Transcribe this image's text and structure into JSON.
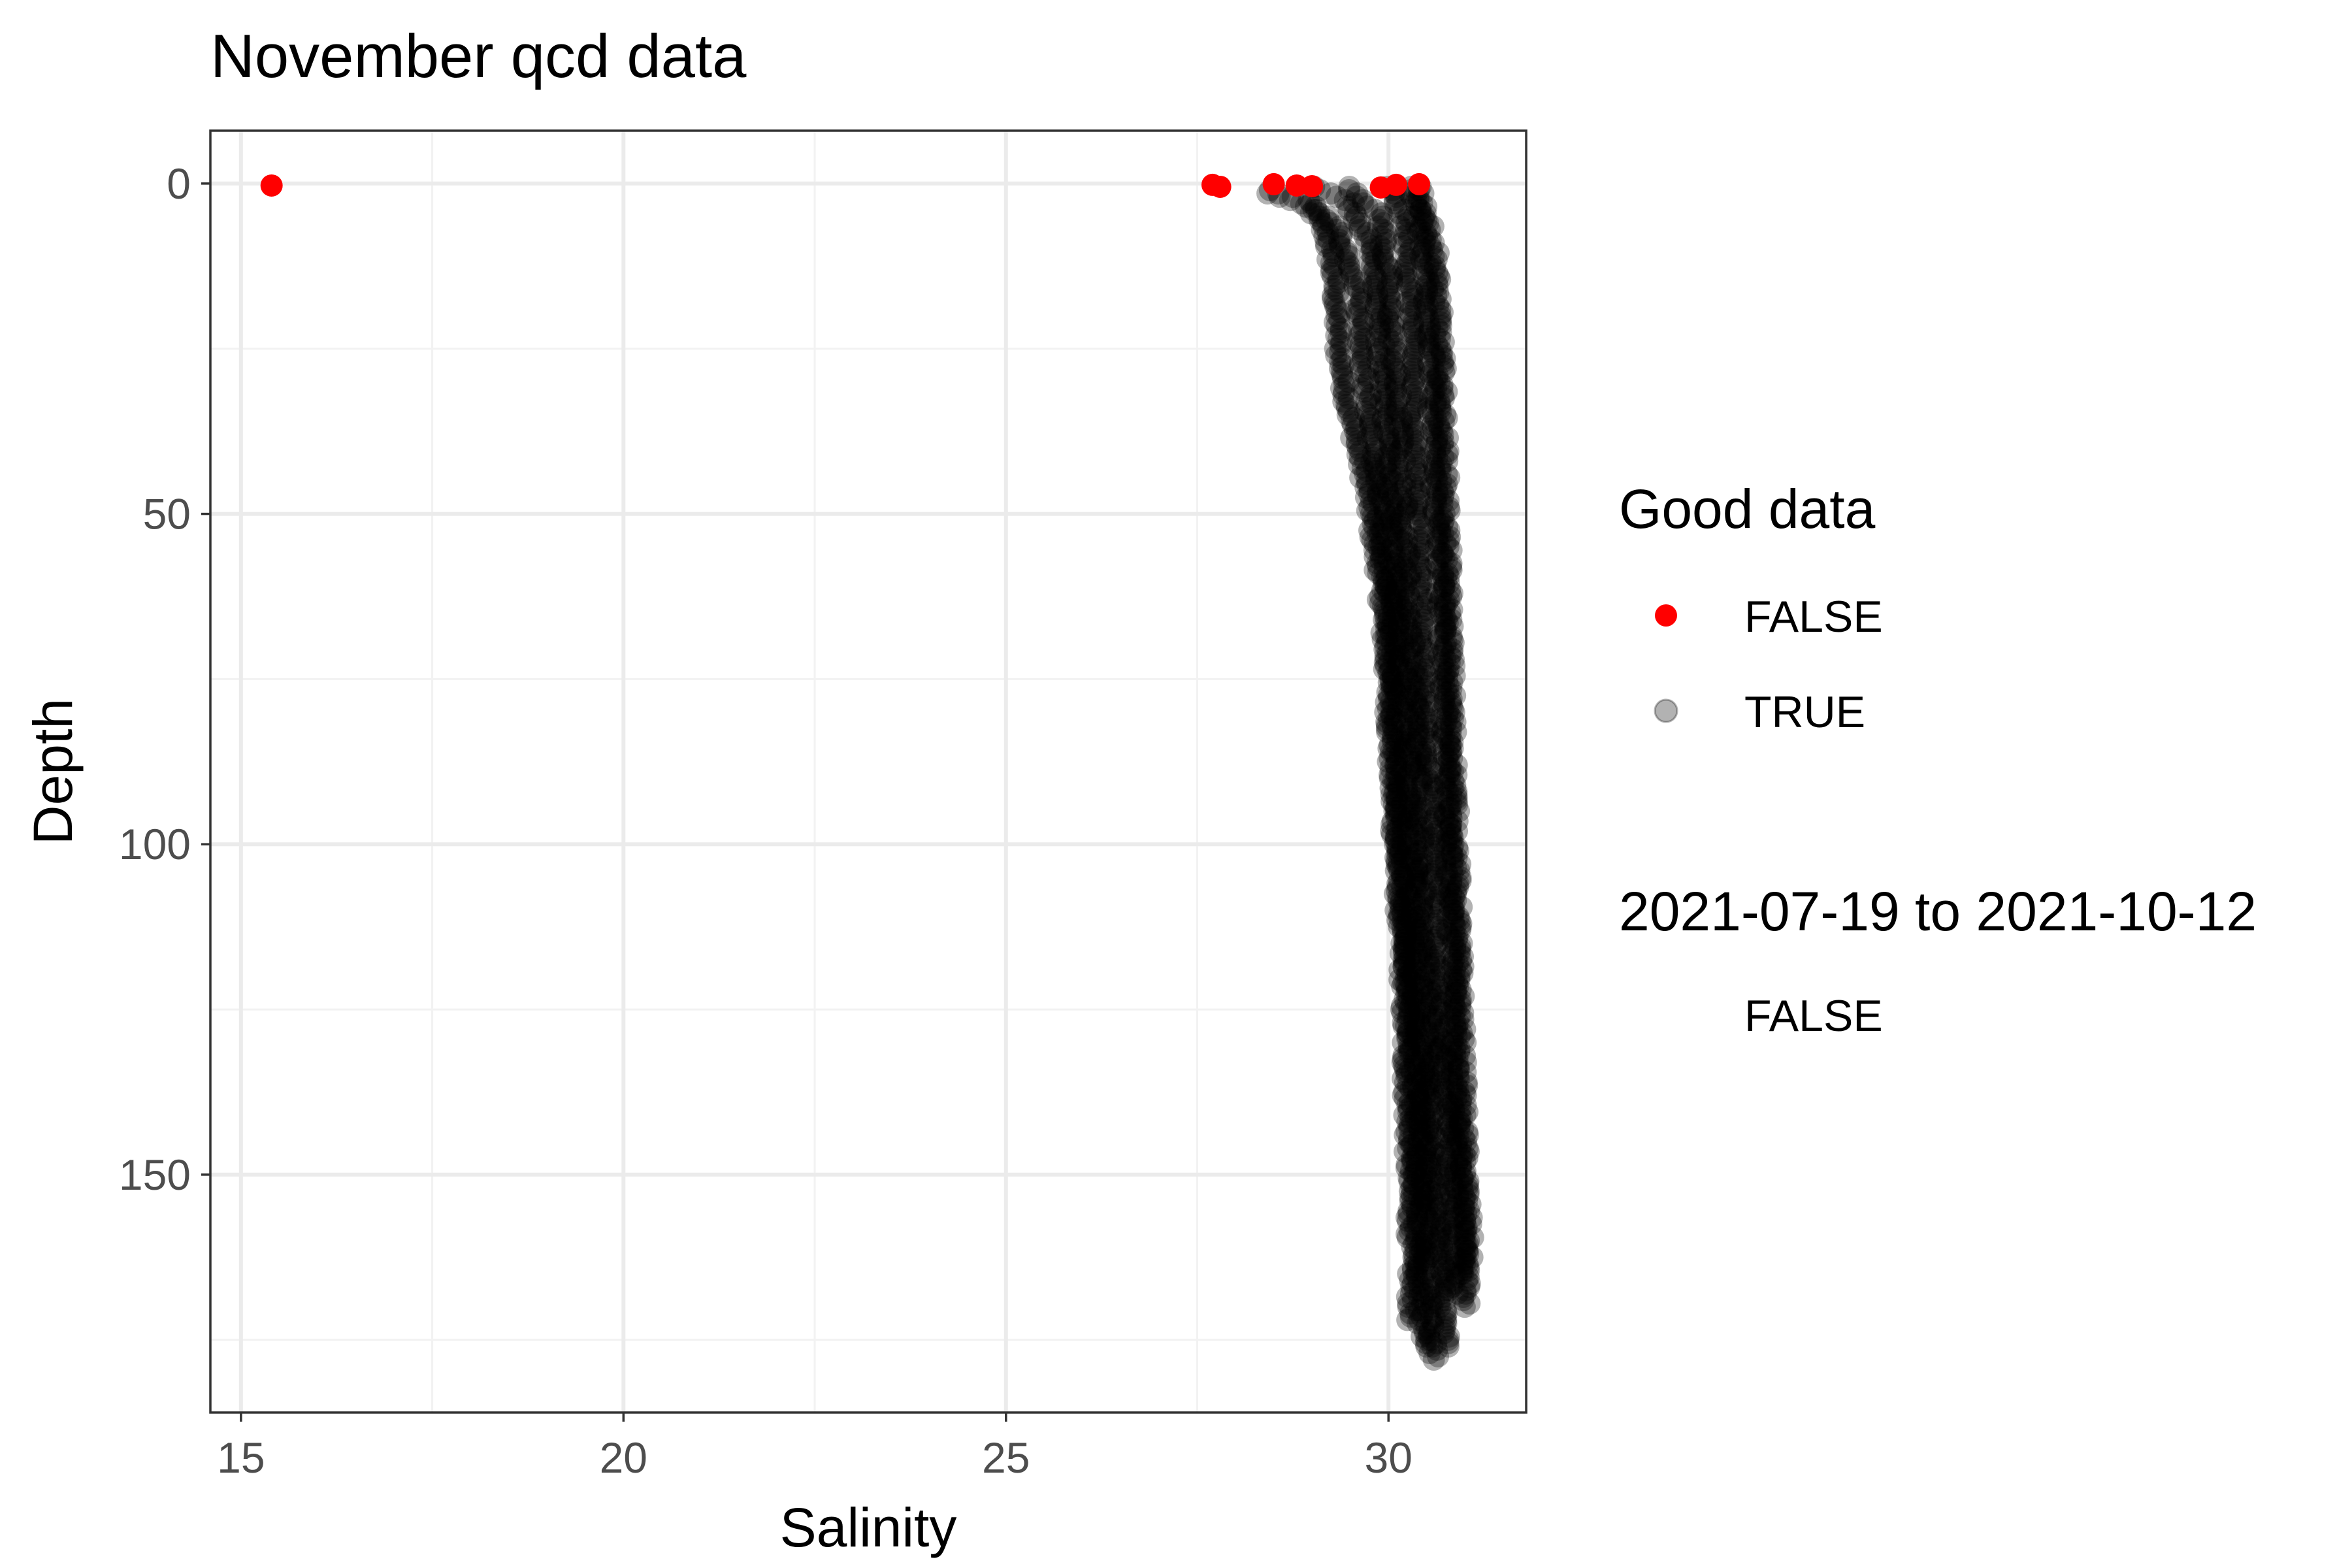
{
  "chart_data": {
    "type": "scatter",
    "title": "November qcd data",
    "xlabel": "Salinity",
    "ylabel": "Depth",
    "xlim": [
      14.6,
      31.8
    ],
    "ylim": [
      -8,
      186
    ],
    "y_reversed": true,
    "x_ticks": [
      15,
      20,
      25,
      30
    ],
    "y_ticks": [
      0,
      50,
      100,
      150
    ],
    "x_tick_labels": [
      "15",
      "20",
      "25",
      "30"
    ],
    "y_tick_labels": [
      "0",
      "50",
      "100",
      "150"
    ],
    "grid": true,
    "legend_placement": "right",
    "legends": [
      {
        "title": "Good data",
        "entries": [
          {
            "label": "FALSE",
            "color": "#ff0000",
            "alpha": 1.0
          },
          {
            "label": "TRUE",
            "color": "#000000",
            "alpha": 0.3
          }
        ]
      },
      {
        "title": "2021-07-19 to 2021-10-12",
        "entries": [
          {
            "label": "FALSE"
          }
        ]
      }
    ],
    "series": [
      {
        "good": "FALSE",
        "color": "#ff0000",
        "alpha": 1.0,
        "points": [
          {
            "x": 15.4,
            "y": 0.3
          },
          {
            "x": 27.7,
            "y": 0.2
          },
          {
            "x": 27.8,
            "y": 0.5
          },
          {
            "x": 28.5,
            "y": 0.1
          },
          {
            "x": 28.8,
            "y": 0.3
          },
          {
            "x": 29.0,
            "y": 0.4
          },
          {
            "x": 29.9,
            "y": 0.6
          },
          {
            "x": 30.1,
            "y": 0.2
          },
          {
            "x": 30.4,
            "y": 0.1
          }
        ]
      },
      {
        "good": "TRUE",
        "color": "#000000",
        "alpha": 0.3,
        "profiles": [
          [
            [
              27.9,
              1.5
            ],
            [
              28.2,
              1.0
            ],
            [
              28.6,
              2.0
            ],
            [
              29.0,
              4.0
            ],
            [
              29.2,
              8
            ],
            [
              29.3,
              15
            ],
            [
              29.35,
              25
            ],
            [
              29.5,
              35
            ],
            [
              29.7,
              45
            ],
            [
              29.9,
              60
            ],
            [
              30.0,
              75
            ],
            [
              30.05,
              90
            ],
            [
              30.1,
              100
            ],
            [
              30.2,
              120
            ],
            [
              30.25,
              140
            ],
            [
              30.3,
              160
            ],
            [
              30.3,
              172
            ]
          ],
          [
            [
              28.4,
              1.0
            ],
            [
              28.9,
              2.5
            ],
            [
              29.3,
              6
            ],
            [
              29.6,
              15
            ],
            [
              29.7,
              30
            ],
            [
              29.85,
              45
            ],
            [
              30.0,
              60
            ],
            [
              30.1,
              80
            ],
            [
              30.15,
              100
            ],
            [
              30.25,
              120
            ],
            [
              30.35,
              140
            ],
            [
              30.4,
              160
            ],
            [
              30.45,
              176
            ]
          ],
          [
            [
              29.0,
              0.5
            ],
            [
              29.5,
              3
            ],
            [
              29.8,
              10
            ],
            [
              29.9,
              25
            ],
            [
              30.0,
              40
            ],
            [
              30.1,
              55
            ],
            [
              30.2,
              75
            ],
            [
              30.3,
              95
            ],
            [
              30.35,
              115
            ],
            [
              30.45,
              135
            ],
            [
              30.5,
              155
            ],
            [
              30.55,
              170
            ],
            [
              30.6,
              178
            ]
          ],
          [
            [
              29.5,
              0.5
            ],
            [
              29.9,
              5
            ],
            [
              30.0,
              15
            ],
            [
              30.1,
              30
            ],
            [
              30.2,
              50
            ],
            [
              30.3,
              70
            ],
            [
              30.4,
              90
            ],
            [
              30.45,
              110
            ],
            [
              30.55,
              130
            ],
            [
              30.6,
              150
            ],
            [
              30.7,
              165
            ],
            [
              30.75,
              176
            ]
          ],
          [
            [
              30.0,
              0.5
            ],
            [
              30.2,
              5
            ],
            [
              30.3,
              20
            ],
            [
              30.35,
              40
            ],
            [
              30.45,
              60
            ],
            [
              30.5,
              80
            ],
            [
              30.6,
              100
            ],
            [
              30.65,
              120
            ],
            [
              30.75,
              140
            ],
            [
              30.8,
              155
            ],
            [
              30.85,
              168
            ]
          ],
          [
            [
              30.3,
              0.5
            ],
            [
              30.45,
              8
            ],
            [
              30.55,
              25
            ],
            [
              30.6,
              45
            ],
            [
              30.7,
              65
            ],
            [
              30.75,
              85
            ],
            [
              30.8,
              105
            ],
            [
              30.85,
              125
            ],
            [
              30.9,
              145
            ],
            [
              30.95,
              158
            ],
            [
              31.0,
              165
            ]
          ],
          [
            [
              30.4,
              0.5
            ],
            [
              30.6,
              10
            ],
            [
              30.7,
              30
            ],
            [
              30.75,
              50
            ],
            [
              30.8,
              70
            ],
            [
              30.85,
              90
            ],
            [
              30.9,
              110
            ],
            [
              30.95,
              130
            ],
            [
              31.0,
              150
            ],
            [
              31.05,
              160
            ],
            [
              31.0,
              170
            ]
          ]
        ]
      }
    ]
  }
}
